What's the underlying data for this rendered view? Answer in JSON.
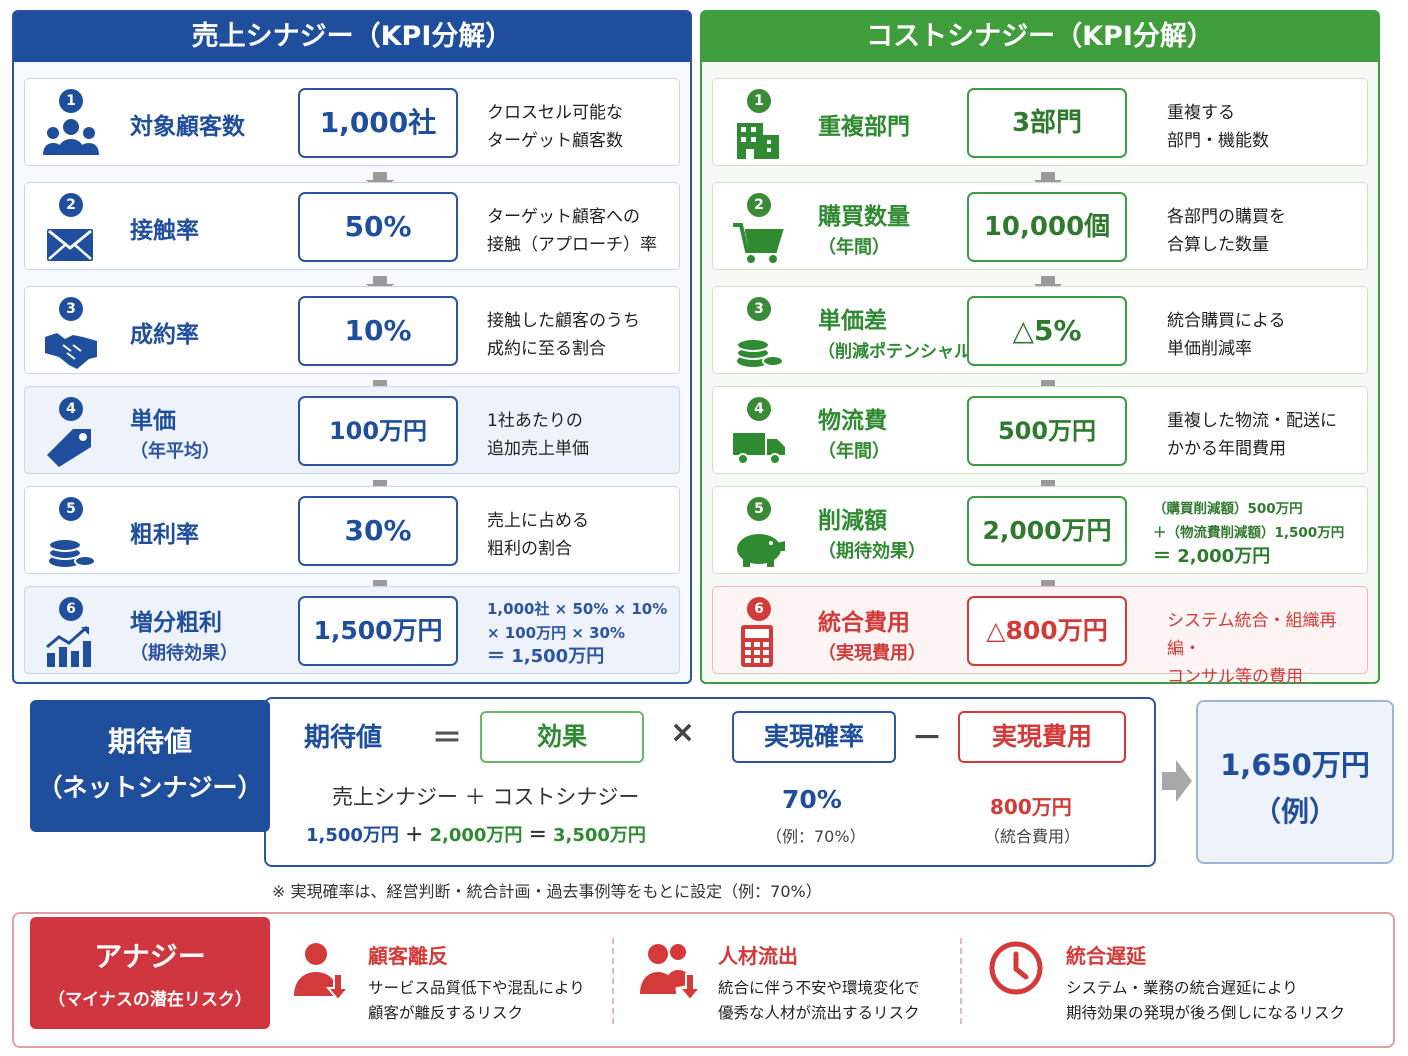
{
  "sales": {
    "title": "売上シナジー（KPI分解）",
    "rows": [
      {
        "num": "1",
        "label": "対象顧客数",
        "sub": "",
        "value": "1,000社",
        "desc1": "クロスセル可能な",
        "desc2": "ターゲット顧客数",
        "icon": "customers-icon"
      },
      {
        "num": "2",
        "label": "接触率",
        "sub": "",
        "value": "50%",
        "desc1": "ターゲット顧客への",
        "desc2": "接触（アプローチ）率",
        "icon": "mail-icon"
      },
      {
        "num": "3",
        "label": "成約率",
        "sub": "",
        "value": "10%",
        "desc1": "接触した顧客のうち",
        "desc2": "成約に至る割合",
        "icon": "handshake-icon"
      },
      {
        "num": "4",
        "label": "単価",
        "sub": "（年平均）",
        "value": "100万円",
        "desc1": "1社あたりの",
        "desc2": "追加売上単価",
        "icon": "price-tag-icon"
      },
      {
        "num": "5",
        "label": "粗利率",
        "sub": "",
        "value": "30%",
        "desc1": "売上に占める",
        "desc2": "粗利の割合",
        "icon": "coins-icon"
      },
      {
        "num": "6",
        "label": "増分粗利",
        "sub": "（期待効果）",
        "value": "1,500万円",
        "f1": "1,000社 × 50% × 10%",
        "f2": "× 100万円 × 30%",
        "f3": "＝ 1,500万円",
        "icon": "growth-chart-icon"
      }
    ]
  },
  "cost": {
    "title": "コストシナジー（KPI分解）",
    "rows": [
      {
        "num": "1",
        "label": "重複部門",
        "sub": "",
        "value": "3部門",
        "desc1": "重複する",
        "desc2": "部門・機能数",
        "icon": "building-icon"
      },
      {
        "num": "2",
        "label": "購買数量",
        "sub": "（年間）",
        "value": "10,000個",
        "desc1": "各部門の購買を",
        "desc2": "合算した数量",
        "icon": "cart-icon"
      },
      {
        "num": "3",
        "label": "単価差",
        "sub": "（削減ポテンシャル）",
        "value": "△5%",
        "desc1": "統合購買による",
        "desc2": "単価削減率",
        "icon": "coins-icon"
      },
      {
        "num": "4",
        "label": "物流費",
        "sub": "（年間）",
        "value": "500万円",
        "desc1": "重複した物流・配送に",
        "desc2": "かかる年間費用",
        "icon": "truck-icon"
      },
      {
        "num": "5",
        "label": "削減額",
        "sub": "（期待効果）",
        "value": "2,000万円",
        "f1": "（購買削減額）500万円",
        "f2": "＋（物流費削減額）1,500万円",
        "f3": "＝ 2,000万円",
        "icon": "piggy-bank-icon"
      },
      {
        "num": "6",
        "label": "統合費用",
        "sub": "（実現費用）",
        "value": "△800万円",
        "desc1": "システム統合・組織再編・",
        "desc2": "コンサル等の費用",
        "icon": "calculator-icon"
      }
    ]
  },
  "expected": {
    "tag1": "期待値",
    "tag2": "（ネットシナジー）",
    "lhs": "期待値",
    "eq": "＝",
    "effect": "効果",
    "times": "×",
    "prob": "実現確率",
    "minus": "－",
    "cost": "実現費用",
    "sum_label": "売上シナジー ＋ コストシナジー",
    "sum_a": "1,500万円",
    "plus": "＋",
    "sum_b": "2,000万円",
    "eq2": "＝",
    "sum_c": "3,500万円",
    "prob_val": "70%",
    "prob_note": "（例：70%）",
    "cost_val": "800万円",
    "cost_note": "（統合費用）",
    "result1": "1,650万円",
    "result2": "（例）",
    "footnote": "※ 実現確率は、経営判断・統合計画・過去事例等をもとに設定（例：70%）"
  },
  "anergy": {
    "tag1": "アナジー",
    "tag2": "（マイナスの潜在リスク）",
    "risks": [
      {
        "title": "顧客離反",
        "d1": "サービス品質低下や混乱により",
        "d2": "顧客が離反するリスク",
        "icon": "customer-loss-icon"
      },
      {
        "title": "人材流出",
        "d1": "統合に伴う不安や環境変化で",
        "d2": "優秀な人材が流出するリスク",
        "icon": "talent-loss-icon"
      },
      {
        "title": "統合遅延",
        "d1": "システム・業務の統合遅延により",
        "d2": "期待効果の発現が後ろ倒しになるリスク",
        "icon": "clock-icon"
      }
    ]
  },
  "colors": {
    "blue": "#1f4e9c",
    "green": "#3f9d3c",
    "red": "#d33a3a"
  }
}
